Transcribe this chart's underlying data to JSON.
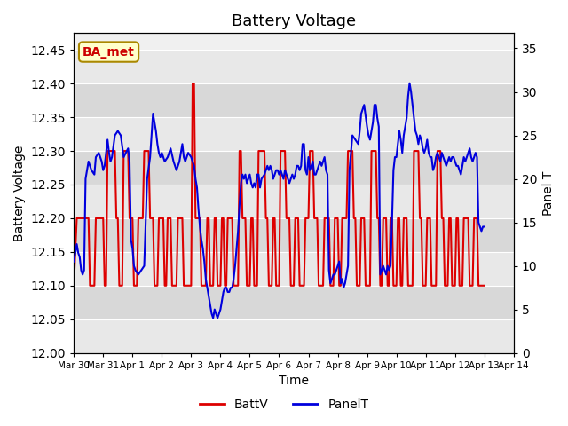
{
  "title": "Battery Voltage",
  "xlabel": "Time",
  "ylabel_left": "Battery Voltage",
  "ylabel_right": "Panel T",
  "annotation_text": "BA_met",
  "ylim_left": [
    12.0,
    12.475
  ],
  "ylim_right": [
    0,
    36.75
  ],
  "yticks_left": [
    12.0,
    12.05,
    12.1,
    12.15,
    12.2,
    12.25,
    12.3,
    12.35,
    12.4,
    12.45
  ],
  "yticks_right": [
    0,
    5,
    10,
    15,
    20,
    25,
    30,
    35
  ],
  "background_color": "#ffffff",
  "plot_bg_color": "#f0f0f0",
  "line_color_batt": "#dd0000",
  "line_color_panel": "#0000dd",
  "legend_labels": [
    "BattV",
    "PanelT"
  ],
  "x_tick_labels": [
    "Mar 30",
    "Mar 31",
    "Apr 1",
    "Apr 2",
    "Apr 3",
    "Apr 4",
    "Apr 5",
    "Apr 6",
    "Apr 7",
    "Apr 8",
    "Apr 9",
    "Apr 10",
    "Apr 11",
    "Apr 12",
    "Apr 13",
    "Apr 14"
  ],
  "batt_data": [
    [
      0.0,
      12.1
    ],
    [
      0.1,
      12.2
    ],
    [
      0.5,
      12.2
    ],
    [
      0.55,
      12.1
    ],
    [
      0.7,
      12.1
    ],
    [
      0.75,
      12.2
    ],
    [
      1.0,
      12.2
    ],
    [
      1.05,
      12.1
    ],
    [
      1.1,
      12.1
    ],
    [
      1.15,
      12.3
    ],
    [
      1.4,
      12.3
    ],
    [
      1.45,
      12.2
    ],
    [
      1.5,
      12.2
    ],
    [
      1.55,
      12.1
    ],
    [
      1.65,
      12.1
    ],
    [
      1.7,
      12.3
    ],
    [
      1.85,
      12.3
    ],
    [
      1.9,
      12.2
    ],
    [
      1.95,
      12.2
    ],
    [
      2.0,
      12.2
    ],
    [
      2.05,
      12.1
    ],
    [
      2.15,
      12.1
    ],
    [
      2.2,
      12.2
    ],
    [
      2.35,
      12.2
    ],
    [
      2.4,
      12.3
    ],
    [
      2.55,
      12.3
    ],
    [
      2.6,
      12.2
    ],
    [
      2.7,
      12.2
    ],
    [
      2.75,
      12.1
    ],
    [
      2.85,
      12.1
    ],
    [
      2.9,
      12.2
    ],
    [
      3.05,
      12.2
    ],
    [
      3.1,
      12.1
    ],
    [
      3.15,
      12.1
    ],
    [
      3.2,
      12.2
    ],
    [
      3.3,
      12.2
    ],
    [
      3.35,
      12.1
    ],
    [
      3.5,
      12.1
    ],
    [
      3.55,
      12.2
    ],
    [
      3.7,
      12.2
    ],
    [
      3.75,
      12.1
    ],
    [
      4.0,
      12.1
    ],
    [
      4.05,
      12.4
    ],
    [
      4.1,
      12.4
    ],
    [
      4.15,
      12.2
    ],
    [
      4.3,
      12.2
    ],
    [
      4.35,
      12.1
    ],
    [
      4.5,
      12.1
    ],
    [
      4.55,
      12.2
    ],
    [
      4.6,
      12.2
    ],
    [
      4.65,
      12.1
    ],
    [
      4.75,
      12.1
    ],
    [
      4.8,
      12.2
    ],
    [
      4.85,
      12.2
    ],
    [
      4.9,
      12.1
    ],
    [
      5.0,
      12.1
    ],
    [
      5.05,
      12.2
    ],
    [
      5.1,
      12.2
    ],
    [
      5.15,
      12.1
    ],
    [
      5.2,
      12.1
    ],
    [
      5.25,
      12.2
    ],
    [
      5.4,
      12.2
    ],
    [
      5.45,
      12.1
    ],
    [
      5.6,
      12.1
    ],
    [
      5.65,
      12.3
    ],
    [
      5.7,
      12.3
    ],
    [
      5.75,
      12.2
    ],
    [
      5.85,
      12.2
    ],
    [
      5.9,
      12.1
    ],
    [
      6.0,
      12.1
    ],
    [
      6.05,
      12.2
    ],
    [
      6.1,
      12.2
    ],
    [
      6.15,
      12.1
    ],
    [
      6.25,
      12.1
    ],
    [
      6.3,
      12.3
    ],
    [
      6.5,
      12.3
    ],
    [
      6.55,
      12.2
    ],
    [
      6.6,
      12.2
    ],
    [
      6.65,
      12.1
    ],
    [
      6.75,
      12.1
    ],
    [
      6.8,
      12.2
    ],
    [
      6.85,
      12.2
    ],
    [
      6.9,
      12.1
    ],
    [
      7.0,
      12.1
    ],
    [
      7.05,
      12.3
    ],
    [
      7.2,
      12.3
    ],
    [
      7.25,
      12.2
    ],
    [
      7.35,
      12.2
    ],
    [
      7.4,
      12.1
    ],
    [
      7.5,
      12.1
    ],
    [
      7.55,
      12.2
    ],
    [
      7.65,
      12.2
    ],
    [
      7.7,
      12.1
    ],
    [
      7.85,
      12.1
    ],
    [
      7.9,
      12.2
    ],
    [
      8.0,
      12.2
    ],
    [
      8.05,
      12.3
    ],
    [
      8.15,
      12.3
    ],
    [
      8.2,
      12.2
    ],
    [
      8.3,
      12.2
    ],
    [
      8.35,
      12.1
    ],
    [
      8.5,
      12.1
    ],
    [
      8.55,
      12.2
    ],
    [
      8.7,
      12.2
    ],
    [
      8.75,
      12.1
    ],
    [
      8.85,
      12.1
    ],
    [
      8.9,
      12.2
    ],
    [
      9.0,
      12.2
    ],
    [
      9.05,
      12.1
    ],
    [
      9.1,
      12.1
    ],
    [
      9.15,
      12.2
    ],
    [
      9.3,
      12.2
    ],
    [
      9.35,
      12.3
    ],
    [
      9.5,
      12.3
    ],
    [
      9.55,
      12.2
    ],
    [
      9.6,
      12.2
    ],
    [
      9.65,
      12.1
    ],
    [
      9.75,
      12.1
    ],
    [
      9.8,
      12.2
    ],
    [
      9.9,
      12.2
    ],
    [
      9.95,
      12.1
    ],
    [
      10.1,
      12.1
    ],
    [
      10.15,
      12.3
    ],
    [
      10.3,
      12.3
    ],
    [
      10.35,
      12.2
    ],
    [
      10.4,
      12.2
    ],
    [
      10.45,
      12.1
    ],
    [
      10.5,
      12.1
    ],
    [
      10.55,
      12.2
    ],
    [
      10.65,
      12.2
    ],
    [
      10.7,
      12.1
    ],
    [
      10.75,
      12.1
    ],
    [
      10.8,
      12.2
    ],
    [
      10.85,
      12.2
    ],
    [
      10.9,
      12.1
    ],
    [
      11.0,
      12.1
    ],
    [
      11.05,
      12.2
    ],
    [
      11.1,
      12.2
    ],
    [
      11.15,
      12.1
    ],
    [
      11.2,
      12.1
    ],
    [
      11.25,
      12.2
    ],
    [
      11.35,
      12.2
    ],
    [
      11.4,
      12.1
    ],
    [
      11.55,
      12.1
    ],
    [
      11.6,
      12.3
    ],
    [
      11.75,
      12.3
    ],
    [
      11.8,
      12.2
    ],
    [
      11.85,
      12.2
    ],
    [
      11.9,
      12.1
    ],
    [
      12.0,
      12.1
    ],
    [
      12.05,
      12.2
    ],
    [
      12.15,
      12.2
    ],
    [
      12.2,
      12.1
    ],
    [
      12.35,
      12.1
    ],
    [
      12.4,
      12.3
    ],
    [
      12.5,
      12.3
    ],
    [
      12.55,
      12.2
    ],
    [
      12.6,
      12.2
    ],
    [
      12.65,
      12.1
    ],
    [
      12.75,
      12.1
    ],
    [
      12.8,
      12.2
    ],
    [
      12.85,
      12.2
    ],
    [
      12.9,
      12.1
    ],
    [
      13.0,
      12.1
    ],
    [
      13.05,
      12.2
    ],
    [
      13.1,
      12.2
    ],
    [
      13.15,
      12.1
    ],
    [
      13.25,
      12.1
    ],
    [
      13.3,
      12.2
    ],
    [
      13.45,
      12.2
    ],
    [
      13.5,
      12.1
    ],
    [
      13.6,
      12.1
    ],
    [
      13.65,
      12.2
    ],
    [
      13.75,
      12.2
    ],
    [
      13.8,
      12.1
    ],
    [
      14.0,
      12.1
    ]
  ],
  "panel_data": [
    [
      0.0,
      10.5
    ],
    [
      0.1,
      12.5
    ],
    [
      0.15,
      11.5
    ],
    [
      0.2,
      11.0
    ],
    [
      0.25,
      9.5
    ],
    [
      0.3,
      9.0
    ],
    [
      0.35,
      9.5
    ],
    [
      0.4,
      20.0
    ],
    [
      0.5,
      22.0
    ],
    [
      0.6,
      21.0
    ],
    [
      0.7,
      20.5
    ],
    [
      0.75,
      22.5
    ],
    [
      0.85,
      23.0
    ],
    [
      0.95,
      22.0
    ],
    [
      1.0,
      21.0
    ],
    [
      1.05,
      21.5
    ],
    [
      1.15,
      24.5
    ],
    [
      1.2,
      23.0
    ],
    [
      1.25,
      22.0
    ],
    [
      1.3,
      22.5
    ],
    [
      1.4,
      25.0
    ],
    [
      1.5,
      25.5
    ],
    [
      1.6,
      25.0
    ],
    [
      1.7,
      22.5
    ],
    [
      1.85,
      23.5
    ],
    [
      1.9,
      22.0
    ],
    [
      1.95,
      13.0
    ],
    [
      2.0,
      12.0
    ],
    [
      2.05,
      10.0
    ],
    [
      2.1,
      9.5
    ],
    [
      2.2,
      9.0
    ],
    [
      2.3,
      9.5
    ],
    [
      2.4,
      10.0
    ],
    [
      2.5,
      20.0
    ],
    [
      2.6,
      22.5
    ],
    [
      2.7,
      27.5
    ],
    [
      2.8,
      25.5
    ],
    [
      2.85,
      24.0
    ],
    [
      2.9,
      23.0
    ],
    [
      2.95,
      22.5
    ],
    [
      3.0,
      23.0
    ],
    [
      3.1,
      22.0
    ],
    [
      3.2,
      22.5
    ],
    [
      3.3,
      23.5
    ],
    [
      3.4,
      22.0
    ],
    [
      3.5,
      21.0
    ],
    [
      3.6,
      22.0
    ],
    [
      3.65,
      23.0
    ],
    [
      3.7,
      24.0
    ],
    [
      3.75,
      22.5
    ],
    [
      3.8,
      22.0
    ],
    [
      3.9,
      23.0
    ],
    [
      4.0,
      22.5
    ],
    [
      4.1,
      21.5
    ],
    [
      4.15,
      20.0
    ],
    [
      4.2,
      19.0
    ],
    [
      4.25,
      16.5
    ],
    [
      4.3,
      14.5
    ],
    [
      4.35,
      13.0
    ],
    [
      4.4,
      12.0
    ],
    [
      4.45,
      10.5
    ],
    [
      4.5,
      8.5
    ],
    [
      4.55,
      7.5
    ],
    [
      4.6,
      6.5
    ],
    [
      4.65,
      5.5
    ],
    [
      4.7,
      4.5
    ],
    [
      4.75,
      4.0
    ],
    [
      4.8,
      5.0
    ],
    [
      4.85,
      4.5
    ],
    [
      4.9,
      4.0
    ],
    [
      4.95,
      4.5
    ],
    [
      5.0,
      5.0
    ],
    [
      5.05,
      6.0
    ],
    [
      5.1,
      7.0
    ],
    [
      5.15,
      7.5
    ],
    [
      5.2,
      7.5
    ],
    [
      5.25,
      7.0
    ],
    [
      5.3,
      7.0
    ],
    [
      5.35,
      7.5
    ],
    [
      5.4,
      7.5
    ],
    [
      5.45,
      8.5
    ],
    [
      5.5,
      10.0
    ],
    [
      5.55,
      12.0
    ],
    [
      5.6,
      14.0
    ],
    [
      5.65,
      17.0
    ],
    [
      5.7,
      19.5
    ],
    [
      5.75,
      20.5
    ],
    [
      5.8,
      20.0
    ],
    [
      5.85,
      20.5
    ],
    [
      5.9,
      19.5
    ],
    [
      5.95,
      20.0
    ],
    [
      6.0,
      20.5
    ],
    [
      6.05,
      19.5
    ],
    [
      6.1,
      19.0
    ],
    [
      6.15,
      19.5
    ],
    [
      6.2,
      19.0
    ],
    [
      6.25,
      20.5
    ],
    [
      6.3,
      20.5
    ],
    [
      6.35,
      19.0
    ],
    [
      6.4,
      20.0
    ],
    [
      6.5,
      20.5
    ],
    [
      6.6,
      21.5
    ],
    [
      6.65,
      21.0
    ],
    [
      6.7,
      21.5
    ],
    [
      6.75,
      21.0
    ],
    [
      6.8,
      20.0
    ],
    [
      6.85,
      20.5
    ],
    [
      6.9,
      21.0
    ],
    [
      6.95,
      21.0
    ],
    [
      7.0,
      20.5
    ],
    [
      7.05,
      21.0
    ],
    [
      7.1,
      20.5
    ],
    [
      7.15,
      20.0
    ],
    [
      7.2,
      21.0
    ],
    [
      7.25,
      20.5
    ],
    [
      7.3,
      20.0
    ],
    [
      7.35,
      19.5
    ],
    [
      7.4,
      20.0
    ],
    [
      7.45,
      20.5
    ],
    [
      7.5,
      20.0
    ],
    [
      7.55,
      20.5
    ],
    [
      7.6,
      21.5
    ],
    [
      7.65,
      21.5
    ],
    [
      7.7,
      21.0
    ],
    [
      7.75,
      21.5
    ],
    [
      7.8,
      24.0
    ],
    [
      7.85,
      24.0
    ],
    [
      7.9,
      21.0
    ],
    [
      7.95,
      20.5
    ],
    [
      8.0,
      22.5
    ],
    [
      8.05,
      21.0
    ],
    [
      8.1,
      21.5
    ],
    [
      8.15,
      22.0
    ],
    [
      8.2,
      20.5
    ],
    [
      8.25,
      20.5
    ],
    [
      8.3,
      21.0
    ],
    [
      8.35,
      21.5
    ],
    [
      8.4,
      22.0
    ],
    [
      8.45,
      21.5
    ],
    [
      8.5,
      22.0
    ],
    [
      8.55,
      22.5
    ],
    [
      8.6,
      21.0
    ],
    [
      8.65,
      20.5
    ],
    [
      8.7,
      9.5
    ],
    [
      8.75,
      8.0
    ],
    [
      8.8,
      8.5
    ],
    [
      8.85,
      9.0
    ],
    [
      8.9,
      9.0
    ],
    [
      8.95,
      9.5
    ],
    [
      9.0,
      10.0
    ],
    [
      9.05,
      10.5
    ],
    [
      9.1,
      8.0
    ],
    [
      9.15,
      8.5
    ],
    [
      9.2,
      7.5
    ],
    [
      9.25,
      8.0
    ],
    [
      9.3,
      9.0
    ],
    [
      9.35,
      10.0
    ],
    [
      9.4,
      21.0
    ],
    [
      9.5,
      25.0
    ],
    [
      9.6,
      24.5
    ],
    [
      9.7,
      24.0
    ],
    [
      9.75,
      25.5
    ],
    [
      9.8,
      27.5
    ],
    [
      9.9,
      28.5
    ],
    [
      10.0,
      26.0
    ],
    [
      10.05,
      25.0
    ],
    [
      10.1,
      24.5
    ],
    [
      10.15,
      25.5
    ],
    [
      10.2,
      26.5
    ],
    [
      10.25,
      28.5
    ],
    [
      10.3,
      28.5
    ],
    [
      10.35,
      27.0
    ],
    [
      10.4,
      26.0
    ],
    [
      10.45,
      9.0
    ],
    [
      10.5,
      9.5
    ],
    [
      10.55,
      10.0
    ],
    [
      10.6,
      9.5
    ],
    [
      10.65,
      9.0
    ],
    [
      10.7,
      10.0
    ],
    [
      10.75,
      9.5
    ],
    [
      10.8,
      10.0
    ],
    [
      10.85,
      15.0
    ],
    [
      10.9,
      21.0
    ],
    [
      10.95,
      22.5
    ],
    [
      11.0,
      22.5
    ],
    [
      11.05,
      24.0
    ],
    [
      11.1,
      25.5
    ],
    [
      11.15,
      24.5
    ],
    [
      11.2,
      23.0
    ],
    [
      11.25,
      25.0
    ],
    [
      11.3,
      26.0
    ],
    [
      11.35,
      27.0
    ],
    [
      11.4,
      29.5
    ],
    [
      11.45,
      31.0
    ],
    [
      11.5,
      30.0
    ],
    [
      11.55,
      28.5
    ],
    [
      11.6,
      27.0
    ],
    [
      11.65,
      25.5
    ],
    [
      11.7,
      25.0
    ],
    [
      11.75,
      24.0
    ],
    [
      11.8,
      25.0
    ],
    [
      11.85,
      24.5
    ],
    [
      11.9,
      23.5
    ],
    [
      11.95,
      23.0
    ],
    [
      12.0,
      23.5
    ],
    [
      12.05,
      24.5
    ],
    [
      12.1,
      23.0
    ],
    [
      12.15,
      22.5
    ],
    [
      12.2,
      22.5
    ],
    [
      12.25,
      21.0
    ],
    [
      12.3,
      21.5
    ],
    [
      12.35,
      22.5
    ],
    [
      12.4,
      23.0
    ],
    [
      12.45,
      22.5
    ],
    [
      12.5,
      22.0
    ],
    [
      12.55,
      23.0
    ],
    [
      12.6,
      22.5
    ],
    [
      12.65,
      22.0
    ],
    [
      12.7,
      21.5
    ],
    [
      12.75,
      22.0
    ],
    [
      12.8,
      22.5
    ],
    [
      12.85,
      22.0
    ],
    [
      12.9,
      22.5
    ],
    [
      12.95,
      22.5
    ],
    [
      13.0,
      22.0
    ],
    [
      13.05,
      21.5
    ],
    [
      13.1,
      21.5
    ],
    [
      13.15,
      21.0
    ],
    [
      13.2,
      20.5
    ],
    [
      13.25,
      21.5
    ],
    [
      13.3,
      22.5
    ],
    [
      13.35,
      22.0
    ],
    [
      13.4,
      22.5
    ],
    [
      13.45,
      23.0
    ],
    [
      13.5,
      23.5
    ],
    [
      13.55,
      22.5
    ],
    [
      13.6,
      22.0
    ],
    [
      13.65,
      22.5
    ],
    [
      13.7,
      23.0
    ],
    [
      13.75,
      22.5
    ],
    [
      13.8,
      15.0
    ],
    [
      13.85,
      14.5
    ],
    [
      13.9,
      14.0
    ],
    [
      13.95,
      14.5
    ],
    [
      14.0,
      14.5
    ]
  ]
}
